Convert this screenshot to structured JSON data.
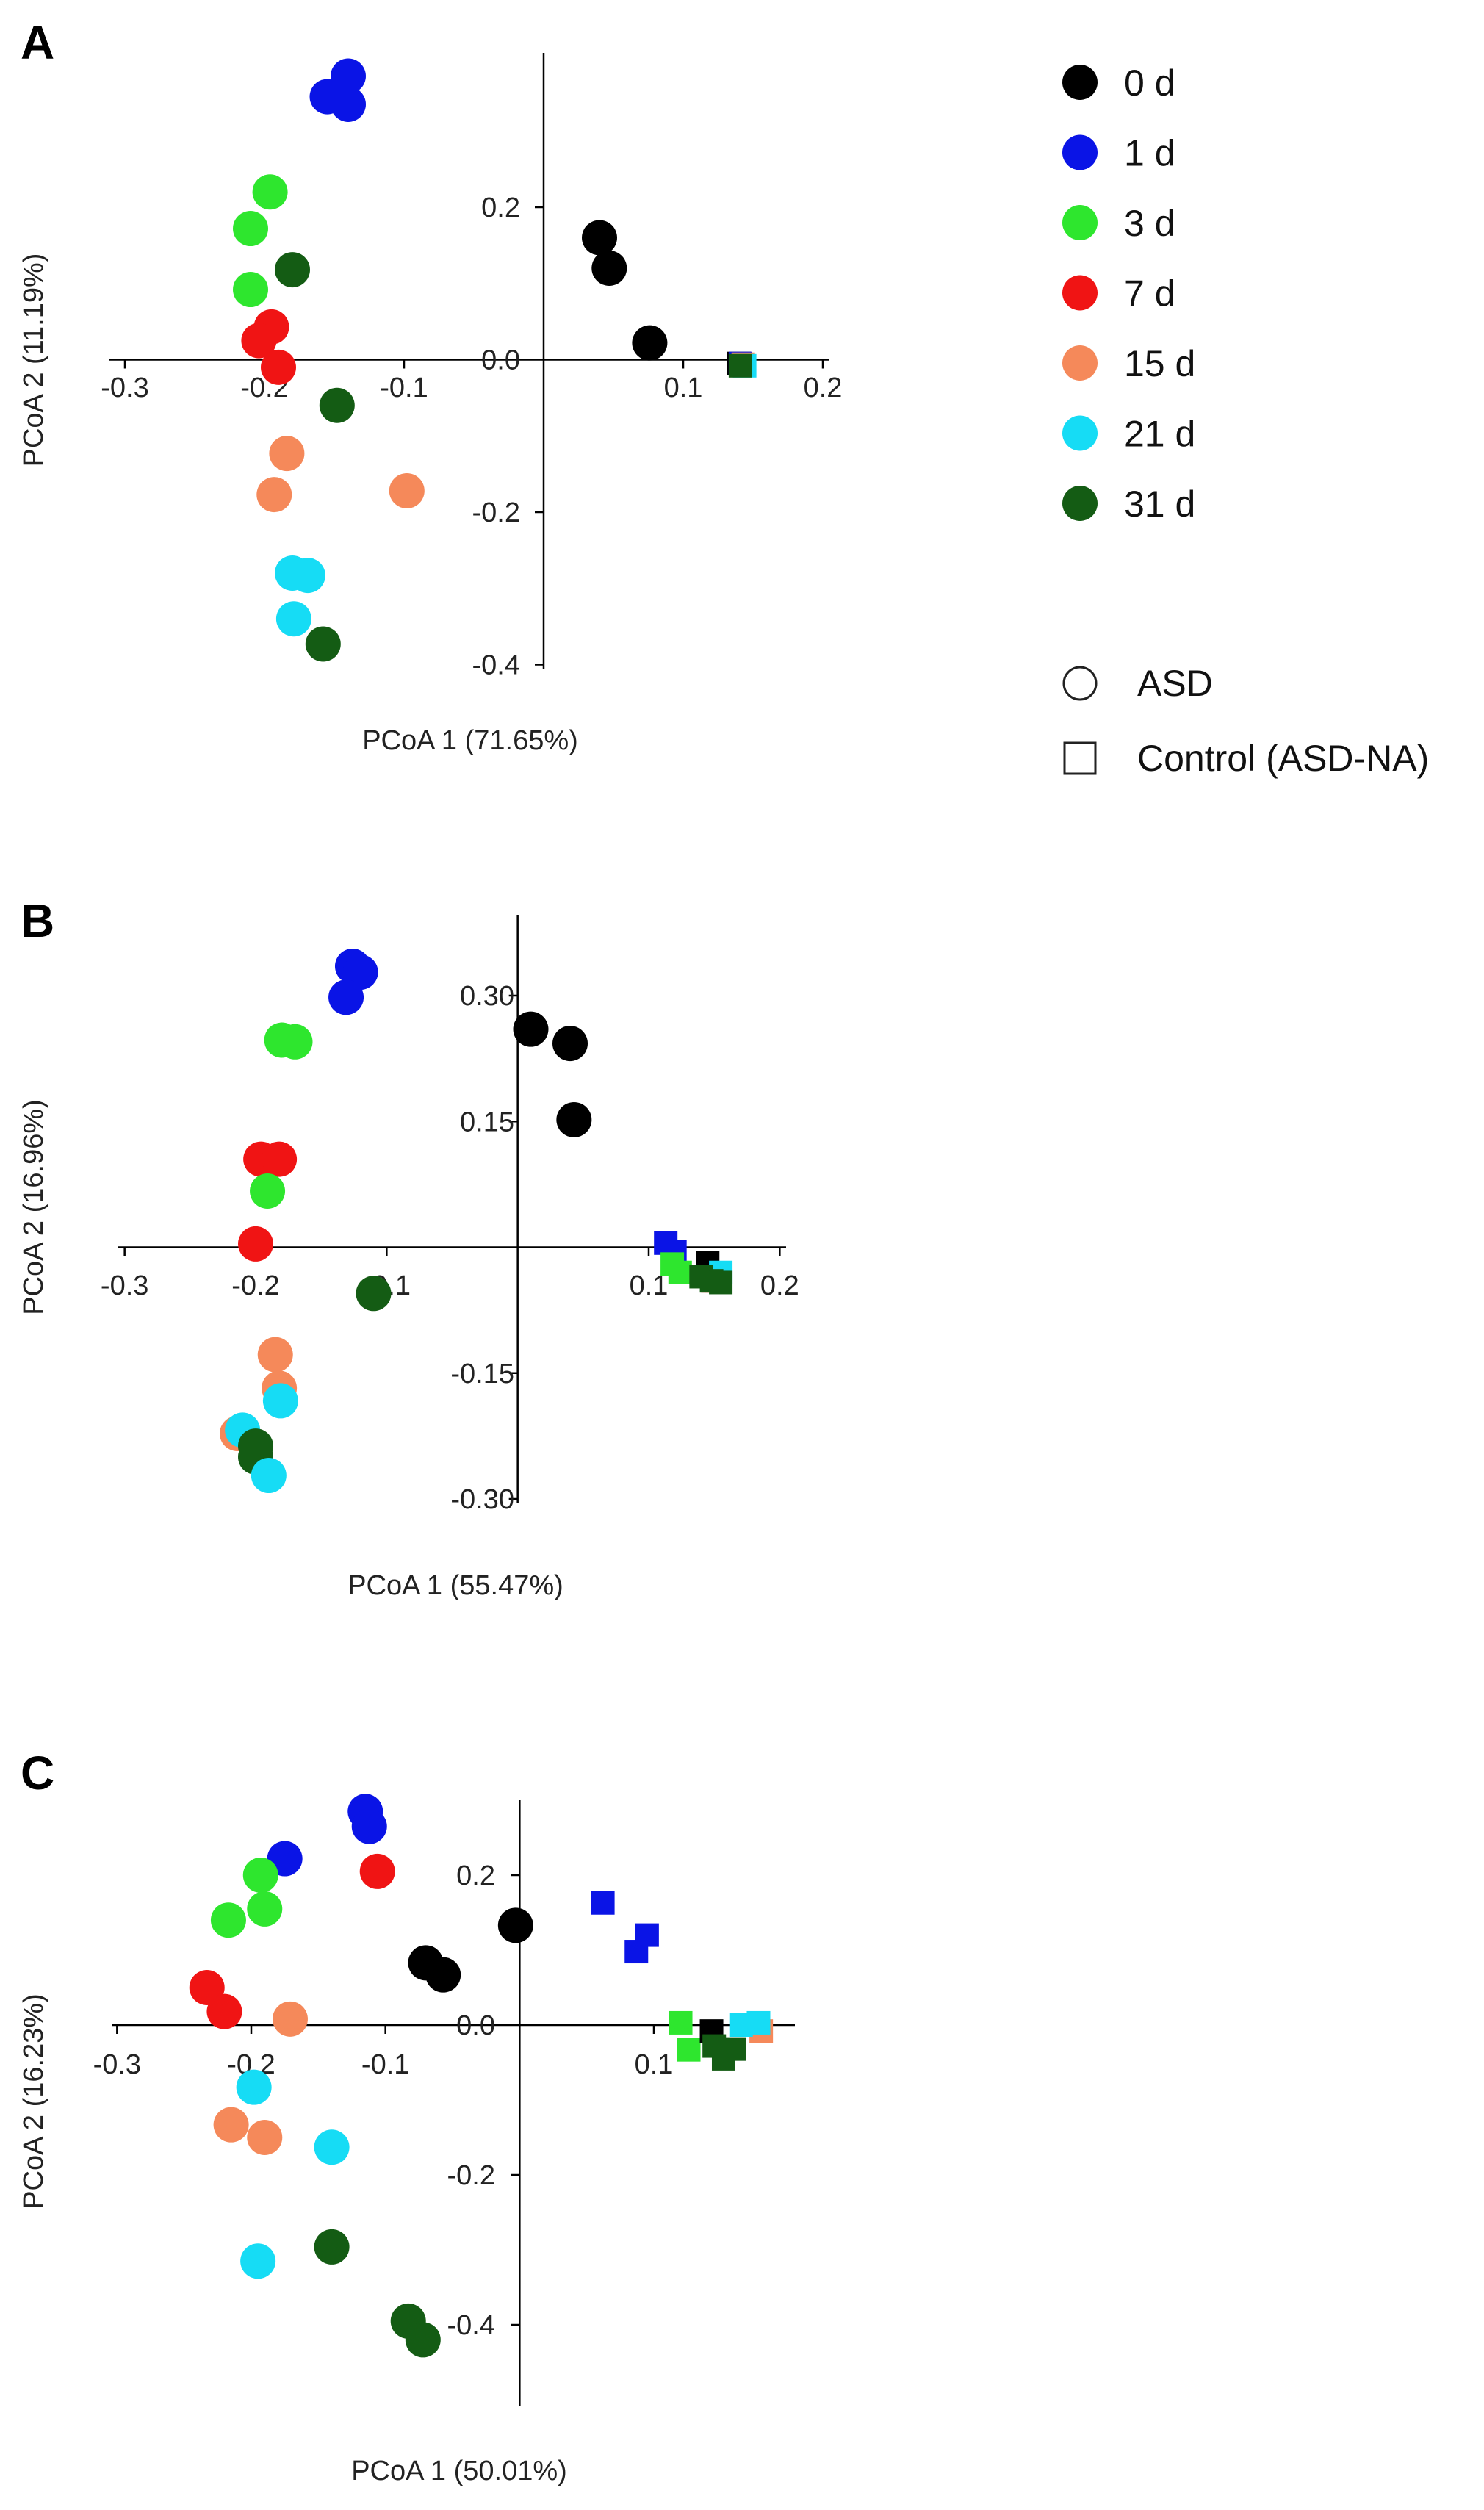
{
  "figure": {
    "series_order": [
      "0 d",
      "1 d",
      "3 d",
      "7 d",
      "15 d",
      "21 d",
      "31 d"
    ],
    "colors": {
      "0 d": "#000000",
      "1 d": "#0a14e6",
      "3 d": "#2ee62e",
      "7 d": "#f01414",
      "15 d": "#f5895a",
      "21 d": "#16dcf5",
      "31 d": "#145c14"
    },
    "legend": {
      "series": [
        "0 d",
        "1 d",
        "3 d",
        "7 d",
        "15 d",
        "21 d",
        "31 d"
      ],
      "shapes": [
        {
          "label": "ASD",
          "marker": "circle"
        },
        {
          "label": "Control (ASD-NA)",
          "marker": "square"
        }
      ]
    }
  },
  "chart_data": [
    {
      "panel": "A",
      "type": "scatter",
      "xlabel": "PCoA 1 (71.65%)",
      "ylabel": "PCoA 2 (11.19%)",
      "xlim": [
        -0.3,
        0.2
      ],
      "ylim": [
        -0.4,
        0.4
      ],
      "xticks": [
        -0.3,
        -0.2,
        -0.1,
        0.1,
        0.2
      ],
      "xtick_labels": [
        "-0.3",
        "-0.2",
        "-0.1",
        "0.1",
        "0.2"
      ],
      "yticks": [
        0.2,
        0.0,
        -0.2,
        -0.4
      ],
      "ytick_labels": [
        "0.2",
        "0.0",
        "-0.2",
        "-0.4"
      ],
      "points": [
        {
          "series": "1 d",
          "marker": "circle",
          "x": -0.155,
          "y": 0.345
        },
        {
          "series": "1 d",
          "marker": "circle",
          "x": -0.14,
          "y": 0.372
        },
        {
          "series": "1 d",
          "marker": "circle",
          "x": -0.14,
          "y": 0.335
        },
        {
          "series": "3 d",
          "marker": "circle",
          "x": -0.196,
          "y": 0.22
        },
        {
          "series": "3 d",
          "marker": "circle",
          "x": -0.21,
          "y": 0.172
        },
        {
          "series": "3 d",
          "marker": "circle",
          "x": -0.21,
          "y": 0.092
        },
        {
          "series": "31 d",
          "marker": "circle",
          "x": -0.18,
          "y": 0.118
        },
        {
          "series": "7 d",
          "marker": "circle",
          "x": -0.195,
          "y": 0.043
        },
        {
          "series": "7 d",
          "marker": "circle",
          "x": -0.204,
          "y": 0.025
        },
        {
          "series": "7 d",
          "marker": "circle",
          "x": -0.19,
          "y": -0.01
        },
        {
          "series": "31 d",
          "marker": "circle",
          "x": -0.148,
          "y": -0.06
        },
        {
          "series": "15 d",
          "marker": "circle",
          "x": -0.184,
          "y": -0.123
        },
        {
          "series": "15 d",
          "marker": "circle",
          "x": -0.193,
          "y": -0.177
        },
        {
          "series": "15 d",
          "marker": "circle",
          "x": -0.098,
          "y": -0.172
        },
        {
          "series": "21 d",
          "marker": "circle",
          "x": -0.18,
          "y": -0.28
        },
        {
          "series": "21 d",
          "marker": "circle",
          "x": -0.169,
          "y": -0.283
        },
        {
          "series": "21 d",
          "marker": "circle",
          "x": -0.179,
          "y": -0.34
        },
        {
          "series": "31 d",
          "marker": "circle",
          "x": -0.158,
          "y": -0.373
        },
        {
          "series": "0 d",
          "marker": "circle",
          "x": 0.04,
          "y": 0.16
        },
        {
          "series": "0 d",
          "marker": "circle",
          "x": 0.047,
          "y": 0.12
        },
        {
          "series": "0 d",
          "marker": "circle",
          "x": 0.076,
          "y": 0.022
        },
        {
          "series": "0 d",
          "marker": "square",
          "x": 0.14,
          "y": -0.005
        },
        {
          "series": "1 d",
          "marker": "square",
          "x": 0.141,
          "y": -0.005
        },
        {
          "series": "15 d",
          "marker": "square",
          "x": 0.143,
          "y": -0.006
        },
        {
          "series": "21 d",
          "marker": "square",
          "x": 0.144,
          "y": -0.008
        },
        {
          "series": "31 d",
          "marker": "square",
          "x": 0.141,
          "y": -0.008
        }
      ]
    },
    {
      "panel": "B",
      "type": "scatter",
      "xlabel": "PCoA 1 (55.47%)",
      "ylabel": "PCoA 2 (16.96%)",
      "xlim": [
        -0.3,
        0.2
      ],
      "ylim": [
        -0.3,
        0.4
      ],
      "xticks": [
        -0.3,
        -0.2,
        -0.1,
        0.1,
        0.2
      ],
      "xtick_labels": [
        "-0.3",
        "-0.2",
        "-0.1",
        "0.1",
        "0.2"
      ],
      "yticks": [
        0.3,
        0.15,
        -0.15,
        -0.3
      ],
      "ytick_labels": [
        "0.30",
        "0.15",
        "-0.15",
        "-0.30"
      ],
      "points": [
        {
          "series": "1 d",
          "marker": "circle",
          "x": -0.126,
          "y": 0.335
        },
        {
          "series": "1 d",
          "marker": "circle",
          "x": -0.12,
          "y": 0.328
        },
        {
          "series": "1 d",
          "marker": "circle",
          "x": -0.131,
          "y": 0.298
        },
        {
          "series": "3 d",
          "marker": "circle",
          "x": -0.18,
          "y": 0.247
        },
        {
          "series": "3 d",
          "marker": "circle",
          "x": -0.17,
          "y": 0.245
        },
        {
          "series": "7 d",
          "marker": "circle",
          "x": -0.196,
          "y": 0.105
        },
        {
          "series": "7 d",
          "marker": "circle",
          "x": -0.182,
          "y": 0.105
        },
        {
          "series": "3 d",
          "marker": "circle",
          "x": -0.191,
          "y": 0.067
        },
        {
          "series": "7 d",
          "marker": "circle",
          "x": -0.2,
          "y": 0.004
        },
        {
          "series": "31 d",
          "marker": "circle",
          "x": -0.11,
          "y": -0.055
        },
        {
          "series": "15 d",
          "marker": "circle",
          "x": -0.185,
          "y": -0.128
        },
        {
          "series": "15 d",
          "marker": "circle",
          "x": -0.182,
          "y": -0.168
        },
        {
          "series": "21 d",
          "marker": "circle",
          "x": -0.181,
          "y": -0.183
        },
        {
          "series": "15 d",
          "marker": "circle",
          "x": -0.214,
          "y": -0.222
        },
        {
          "series": "21 d",
          "marker": "circle",
          "x": -0.21,
          "y": -0.218
        },
        {
          "series": "31 d",
          "marker": "circle",
          "x": -0.2,
          "y": -0.237
        },
        {
          "series": "31 d",
          "marker": "circle",
          "x": -0.2,
          "y": -0.25
        },
        {
          "series": "21 d",
          "marker": "circle",
          "x": -0.19,
          "y": -0.272
        },
        {
          "series": "0 d",
          "marker": "circle",
          "x": 0.01,
          "y": 0.26
        },
        {
          "series": "0 d",
          "marker": "circle",
          "x": 0.04,
          "y": 0.243
        },
        {
          "series": "0 d",
          "marker": "circle",
          "x": 0.043,
          "y": 0.152
        },
        {
          "series": "1 d",
          "marker": "square",
          "x": 0.113,
          "y": 0.005
        },
        {
          "series": "1 d",
          "marker": "square",
          "x": 0.12,
          "y": -0.005
        },
        {
          "series": "3 d",
          "marker": "square",
          "x": 0.118,
          "y": -0.02
        },
        {
          "series": "3 d",
          "marker": "square",
          "x": 0.124,
          "y": -0.03
        },
        {
          "series": "0 d",
          "marker": "square",
          "x": 0.145,
          "y": -0.018
        },
        {
          "series": "7 d",
          "marker": "square",
          "x": 0.149,
          "y": -0.04
        },
        {
          "series": "15 d",
          "marker": "square",
          "x": 0.152,
          "y": -0.04
        },
        {
          "series": "21 d",
          "marker": "square",
          "x": 0.155,
          "y": -0.03
        },
        {
          "series": "31 d",
          "marker": "square",
          "x": 0.14,
          "y": -0.035
        },
        {
          "series": "31 d",
          "marker": "square",
          "x": 0.148,
          "y": -0.04
        },
        {
          "series": "31 d",
          "marker": "square",
          "x": 0.155,
          "y": -0.042
        }
      ]
    },
    {
      "panel": "C",
      "type": "scatter",
      "xlabel": "PCoA 1 (50.01%)",
      "ylabel": "PCoA 2 (16.23%)",
      "xlim": [
        -0.3,
        0.2
      ],
      "ylim": [
        -0.5,
        0.3
      ],
      "xticks": [
        -0.3,
        -0.2,
        -0.1,
        0.1
      ],
      "xtick_labels": [
        "-0.3",
        "-0.2",
        "-0.1",
        "0.1"
      ],
      "yticks": [
        0.2,
        0.0,
        -0.2,
        -0.4
      ],
      "ytick_labels": [
        "0.2",
        "0.0",
        "-0.2",
        "-0.4"
      ],
      "points": [
        {
          "series": "1 d",
          "marker": "circle",
          "x": -0.115,
          "y": 0.285
        },
        {
          "series": "1 d",
          "marker": "circle",
          "x": -0.112,
          "y": 0.265
        },
        {
          "series": "1 d",
          "marker": "circle",
          "x": -0.175,
          "y": 0.222
        },
        {
          "series": "3 d",
          "marker": "circle",
          "x": -0.193,
          "y": 0.2
        },
        {
          "series": "7 d",
          "marker": "circle",
          "x": -0.106,
          "y": 0.205
        },
        {
          "series": "3 d",
          "marker": "circle",
          "x": -0.19,
          "y": 0.155
        },
        {
          "series": "3 d",
          "marker": "circle",
          "x": -0.217,
          "y": 0.14
        },
        {
          "series": "7 d",
          "marker": "circle",
          "x": -0.233,
          "y": 0.05
        },
        {
          "series": "7 d",
          "marker": "circle",
          "x": -0.22,
          "y": 0.018
        },
        {
          "series": "15 d",
          "marker": "circle",
          "x": -0.171,
          "y": 0.008
        },
        {
          "series": "0 d",
          "marker": "circle",
          "x": -0.07,
          "y": 0.083
        },
        {
          "series": "0 d",
          "marker": "circle",
          "x": -0.057,
          "y": 0.067
        },
        {
          "series": "0 d",
          "marker": "circle",
          "x": -0.003,
          "y": 0.133
        },
        {
          "series": "21 d",
          "marker": "circle",
          "x": -0.198,
          "y": -0.083
        },
        {
          "series": "15 d",
          "marker": "circle",
          "x": -0.215,
          "y": -0.133
        },
        {
          "series": "15 d",
          "marker": "circle",
          "x": -0.19,
          "y": -0.15
        },
        {
          "series": "21 d",
          "marker": "circle",
          "x": -0.14,
          "y": -0.163
        },
        {
          "series": "31 d",
          "marker": "circle",
          "x": -0.14,
          "y": -0.296
        },
        {
          "series": "21 d",
          "marker": "circle",
          "x": -0.195,
          "y": -0.315
        },
        {
          "series": "31 d",
          "marker": "circle",
          "x": -0.083,
          "y": -0.395
        },
        {
          "series": "31 d",
          "marker": "circle",
          "x": -0.072,
          "y": -0.42
        },
        {
          "series": "1 d",
          "marker": "square",
          "x": 0.062,
          "y": 0.163
        },
        {
          "series": "1 d",
          "marker": "square",
          "x": 0.095,
          "y": 0.12
        },
        {
          "series": "1 d",
          "marker": "square",
          "x": 0.087,
          "y": 0.098
        },
        {
          "series": "3 d",
          "marker": "square",
          "x": 0.12,
          "y": 0.003
        },
        {
          "series": "3 d",
          "marker": "square",
          "x": 0.126,
          "y": -0.033
        },
        {
          "series": "0 d",
          "marker": "square",
          "x": 0.143,
          "y": -0.008
        },
        {
          "series": "31 d",
          "marker": "square",
          "x": 0.145,
          "y": -0.028
        },
        {
          "series": "31 d",
          "marker": "square",
          "x": 0.152,
          "y": -0.045
        },
        {
          "series": "31 d",
          "marker": "square",
          "x": 0.16,
          "y": -0.032
        },
        {
          "series": "15 d",
          "marker": "square",
          "x": 0.18,
          "y": -0.008
        },
        {
          "series": "21 d",
          "marker": "square",
          "x": 0.165,
          "y": 0.0
        },
        {
          "series": "21 d",
          "marker": "square",
          "x": 0.178,
          "y": 0.003
        }
      ]
    }
  ]
}
